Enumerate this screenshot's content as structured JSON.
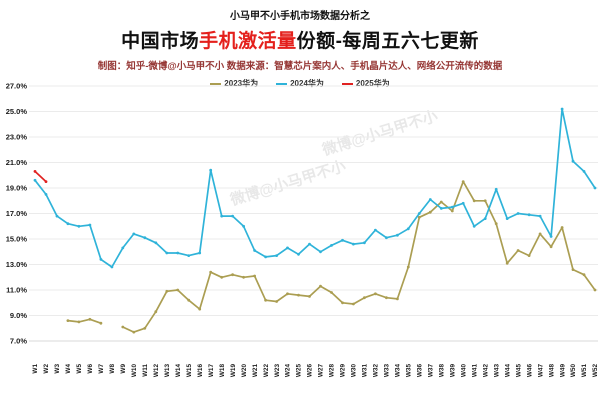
{
  "header": {
    "super_title": "小马甲不小手机市场数据分析之",
    "title_prefix": "中国市场",
    "title_highlight": "手机激活量",
    "title_suffix": "份额-每周五六七更新",
    "subtitle": "制图：知乎-微博@小马甲不小  数据来源：智慧芯片案内人、手机晶片达人、网络公开流传的数据"
  },
  "watermark": {
    "text": "微博@小马甲不小"
  },
  "colors": {
    "title_highlight": "#e4201c",
    "subtitle": "#963735",
    "grid": "#ebebeb",
    "axis_text": "#1a1a1a",
    "series_2023": "#ab9e52",
    "series_2024": "#2fb3d9",
    "series_2025": "#e02221"
  },
  "chart_data": {
    "type": "line",
    "title": "中国市场手机激活量份额-每周五六七更新",
    "xlabel": "",
    "ylabel": "",
    "ylim": [
      7.0,
      27.0
    ],
    "y_tick_step": 2.0,
    "y_tick_suffix": "%",
    "grid": true,
    "legend_position": "top",
    "x_labels": [
      "W1",
      "W2",
      "W3",
      "W4",
      "W5",
      "W6",
      "W7",
      "W8",
      "W9",
      "W10",
      "W11",
      "W12",
      "W13",
      "W14",
      "W15",
      "W16",
      "W17",
      "W18",
      "W19",
      "W20",
      "W21",
      "W22",
      "W23",
      "W24",
      "W25",
      "W26",
      "W27",
      "W28",
      "W29",
      "W30",
      "W31",
      "W32",
      "W33",
      "W34",
      "W35",
      "W36",
      "W37",
      "W38",
      "W39",
      "W40",
      "W41",
      "W42",
      "W43",
      "W44",
      "W45",
      "W46",
      "W47",
      "W48",
      "W49",
      "W50",
      "W51",
      "W52"
    ],
    "series": [
      {
        "name": "2023华为",
        "color": "#ab9e52",
        "values": [
          null,
          null,
          null,
          8.6,
          8.5,
          8.7,
          8.4,
          null,
          8.1,
          7.7,
          8.0,
          9.3,
          10.9,
          11.0,
          10.2,
          9.5,
          12.4,
          12.0,
          12.2,
          12.0,
          12.1,
          10.2,
          10.1,
          10.7,
          10.6,
          10.5,
          11.3,
          10.8,
          10.0,
          9.9,
          10.4,
          10.7,
          10.4,
          10.3,
          12.8,
          16.7,
          17.1,
          17.9,
          17.2,
          19.5,
          18.0,
          18.0,
          16.2,
          13.1,
          14.1,
          13.7,
          15.4,
          14.4,
          15.9,
          12.6,
          12.2,
          11.0
        ]
      },
      {
        "name": "2024华为",
        "color": "#2fb3d9",
        "values": [
          19.6,
          18.5,
          16.8,
          16.2,
          16.0,
          16.1,
          13.4,
          12.8,
          14.3,
          15.4,
          15.1,
          14.7,
          13.9,
          13.9,
          13.7,
          13.9,
          20.4,
          16.8,
          16.8,
          16.0,
          14.1,
          13.6,
          13.7,
          14.3,
          13.8,
          14.6,
          14.0,
          14.5,
          14.9,
          14.6,
          14.7,
          15.7,
          15.1,
          15.3,
          15.8,
          17.0,
          18.1,
          17.4,
          17.5,
          17.8,
          16.0,
          16.6,
          18.9,
          16.6,
          17.0,
          16.9,
          16.8,
          15.2,
          25.2,
          21.1,
          20.3,
          19.0
        ]
      },
      {
        "name": "2025华为",
        "color": "#e02221",
        "values": [
          20.3,
          19.5,
          null,
          null,
          null,
          null,
          null,
          null,
          null,
          null,
          null,
          null,
          null,
          null,
          null,
          null,
          null,
          null,
          null,
          null,
          null,
          null,
          null,
          null,
          null,
          null,
          null,
          null,
          null,
          null,
          null,
          null,
          null,
          null,
          null,
          null,
          null,
          null,
          null,
          null,
          null,
          null,
          null,
          null,
          null,
          null,
          null,
          null,
          null,
          null,
          null,
          null
        ]
      }
    ]
  }
}
